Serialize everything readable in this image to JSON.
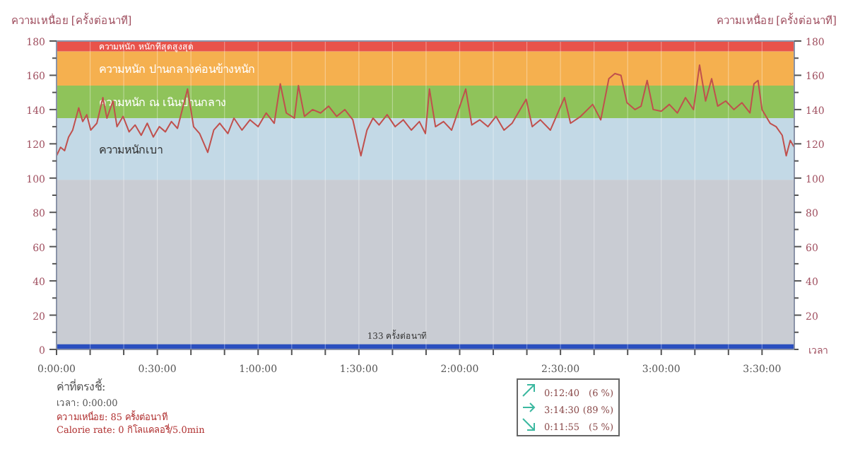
{
  "chart_data": {
    "type": "line",
    "ylabel": "ความเหนื่อย [ครั้งต่อนาที]",
    "y2label": "ความเหนื่อย [ครั้งต่อนาที]",
    "xlabel": "เวลา",
    "x": [
      0,
      0.02,
      0.04,
      0.06,
      0.08,
      0.11,
      0.13,
      0.15,
      0.17,
      0.2,
      0.23,
      0.25,
      0.28,
      0.3,
      0.33,
      0.36,
      0.39,
      0.42,
      0.45,
      0.48,
      0.51,
      0.54,
      0.57,
      0.6,
      0.65,
      0.68,
      0.71,
      0.75,
      0.78,
      0.81,
      0.85,
      0.88,
      0.92,
      0.96,
      1,
      1.04,
      1.08,
      1.11,
      1.14,
      1.18,
      1.2,
      1.23,
      1.27,
      1.31,
      1.35,
      1.39,
      1.43,
      1.47,
      1.51,
      1.54,
      1.57,
      1.6,
      1.64,
      1.68,
      1.72,
      1.76,
      1.8,
      1.83,
      1.85,
      1.88,
      1.92,
      1.96,
      2.03,
      2.06,
      2.1,
      2.14,
      2.18,
      2.22,
      2.26,
      2.33,
      2.36,
      2.4,
      2.45,
      2.52,
      2.55,
      2.6,
      2.66,
      2.7,
      2.74,
      2.77,
      2.8,
      2.83,
      2.87,
      2.9,
      2.93,
      2.96,
      3,
      3.04,
      3.08,
      3.12,
      3.16,
      3.19,
      3.22,
      3.25,
      3.28,
      3.32,
      3.36,
      3.4,
      3.44,
      3.46,
      3.48,
      3.5,
      3.54,
      3.57,
      3.6,
      3.62,
      3.64,
      3.66
    ],
    "series": [
      {
        "color": "#c0504d",
        "values": [
          113,
          118,
          116,
          124,
          128,
          141,
          133,
          137,
          128,
          132,
          147,
          135,
          145,
          130,
          136,
          127,
          131,
          125,
          132,
          124,
          130,
          127,
          133,
          129,
          152,
          130,
          126,
          115,
          128,
          132,
          126,
          135,
          128,
          134,
          130,
          138,
          132,
          155,
          138,
          135,
          154,
          136,
          140,
          138,
          142,
          136,
          140,
          134,
          113,
          128,
          135,
          131,
          137,
          130,
          134,
          128,
          133,
          126,
          152,
          130,
          133,
          128,
          152,
          131,
          134,
          130,
          136,
          128,
          132,
          146,
          130,
          134,
          128,
          147,
          132,
          136,
          143,
          134,
          158,
          161,
          160,
          144,
          140,
          142,
          157,
          140,
          139,
          143,
          138,
          147,
          140,
          166,
          145,
          158,
          142,
          145,
          140,
          144,
          138,
          155,
          157,
          140,
          132,
          130,
          125,
          113,
          122,
          118
        ]
      }
    ],
    "xlim": [
      0,
      3.66
    ],
    "xticks": [
      {
        "value": 0,
        "label": "0:00:00"
      },
      {
        "value": 0.1667,
        "label": null
      },
      {
        "value": 0.3333,
        "label": null
      },
      {
        "value": 0.5,
        "label": "0:30:00"
      },
      {
        "value": 0.6667,
        "label": null
      },
      {
        "value": 0.8333,
        "label": null
      },
      {
        "value": 1,
        "label": "1:00:00"
      },
      {
        "value": 1.1667,
        "label": null
      },
      {
        "value": 1.3333,
        "label": null
      },
      {
        "value": 1.5,
        "label": "1:30:00"
      },
      {
        "value": 1.6667,
        "label": null
      },
      {
        "value": 1.8333,
        "label": null
      },
      {
        "value": 2,
        "label": "2:00:00"
      },
      {
        "value": 2.1667,
        "label": null
      },
      {
        "value": 2.3333,
        "label": null
      },
      {
        "value": 2.5,
        "label": "2:30:00"
      },
      {
        "value": 2.6667,
        "label": null
      },
      {
        "value": 2.8333,
        "label": null
      },
      {
        "value": 3,
        "label": "3:00:00"
      },
      {
        "value": 3.1667,
        "label": null
      },
      {
        "value": 3.3333,
        "label": null
      },
      {
        "value": 3.5,
        "label": "3:30:00"
      }
    ],
    "ylim": [
      0,
      180
    ],
    "yticks": [
      0,
      {
        "value": 10,
        "label": null
      },
      20,
      {
        "value": 30,
        "label": null
      },
      40,
      {
        "value": 50,
        "label": null
      },
      60,
      {
        "value": 70,
        "label": null
      },
      80,
      {
        "value": 90,
        "label": null
      },
      100,
      {
        "value": 110,
        "label": null
      },
      120,
      {
        "value": 130,
        "label": null
      },
      140,
      {
        "value": 150,
        "label": null
      },
      160,
      {
        "value": 170,
        "label": null
      },
      180
    ],
    "y2lim": [
      0,
      180
    ],
    "y2ticks": [
      {
        "value": 0,
        "label": null
      },
      {
        "value": 10,
        "label": null
      },
      20,
      {
        "value": 30,
        "label": null
      },
      40,
      {
        "value": 50,
        "label": null
      },
      60,
      {
        "value": 70,
        "label": null
      },
      80,
      {
        "value": 90,
        "label": null
      },
      100,
      {
        "value": 110,
        "label": null
      },
      120,
      {
        "value": 130,
        "label": null
      },
      140,
      {
        "value": 150,
        "label": null
      },
      160,
      {
        "value": 170,
        "label": null
      },
      180
    ],
    "grid": "x",
    "bands": [
      {
        "axis": "y",
        "from": 0,
        "to": 99,
        "label": null,
        "color": "#c9ccd3"
      },
      {
        "axis": "y",
        "from": 99,
        "to": 135,
        "label": "ความหนักเบา",
        "color": "#c3d9e6"
      },
      {
        "axis": "y",
        "from": 135,
        "to": 154,
        "label": "ความหนัก ณ เนินปานกลาง",
        "color": "#8fc35a"
      },
      {
        "axis": "y",
        "from": 154,
        "to": 174,
        "label": "ความหนัก ปานกลางค่อนข้างหนัก",
        "color": "#f5b04f"
      },
      {
        "axis": "y",
        "from": 174,
        "to": 180,
        "label": "ความหนัก หนักที่สุดสูงสุด",
        "color": "#e8534a"
      },
      {
        "axis": "y",
        "from": 0,
        "to": 3,
        "label": "133 ครั้งต่อนาที",
        "color": "#2a4fbf"
      }
    ],
    "annotations": [
      "ค่าที่ตรงชี้:",
      "เวลา: 0:00:00",
      "ความเหนื่อย: 85 ครั้งต่อนาที",
      "Calorie rate: 0 กิโลแคลอรี่/5.0min",
      "0:12:40 (6 %)",
      "3:14:30 (89 %)",
      "0:11:55 (5 %)"
    ]
  }
}
